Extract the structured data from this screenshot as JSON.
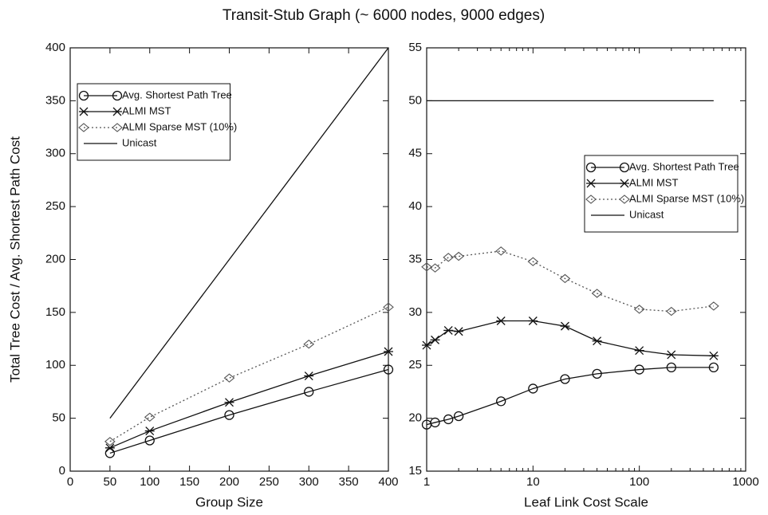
{
  "title": "Transit-Stub Graph (~ 6000 nodes, 9000 edges)",
  "chart_data": [
    {
      "type": "line",
      "xlabel": "Group Size",
      "ylabel": "Total Tree Cost / Avg. Shortest Path Cost",
      "x": [
        50,
        100,
        200,
        300,
        400
      ],
      "xlim": [
        0,
        400
      ],
      "xticks": [
        0,
        50,
        100,
        150,
        200,
        250,
        300,
        350,
        400
      ],
      "ylim": [
        0,
        400
      ],
      "yticks": [
        0,
        50,
        100,
        150,
        200,
        250,
        300,
        350,
        400
      ],
      "log_x": false,
      "legend": "upper left",
      "series": [
        {
          "name": "Avg. Shortest Path Tree",
          "color": "#111",
          "marker": "circle",
          "dash": false,
          "values": [
            17,
            29,
            53,
            75,
            96
          ]
        },
        {
          "name": "ALMI MST",
          "color": "#111",
          "marker": "star",
          "dash": false,
          "values": [
            22,
            38,
            65,
            90,
            113
          ]
        },
        {
          "name": "ALMI Sparse MST (10%)",
          "color": "#555",
          "marker": "diamond",
          "dash": true,
          "values": [
            28,
            51,
            88,
            120,
            155
          ]
        },
        {
          "name": "Unicast",
          "color": "#111",
          "marker": "none",
          "dash": false,
          "values": [
            50,
            100,
            200,
            300,
            400
          ]
        }
      ]
    },
    {
      "type": "line",
      "xlabel": "Leaf Link Cost Scale",
      "x": [
        1,
        1.2,
        1.6,
        2,
        5,
        10,
        20,
        40,
        100,
        200,
        500
      ],
      "xlim": [
        1,
        1000
      ],
      "xticks": [
        1,
        10,
        100,
        1000
      ],
      "ylim": [
        15,
        55
      ],
      "yticks": [
        15,
        20,
        25,
        30,
        35,
        40,
        45,
        50,
        55
      ],
      "log_x": true,
      "legend": "center right",
      "series": [
        {
          "name": "Avg. Shortest Path Tree",
          "color": "#111",
          "marker": "circle",
          "dash": false,
          "values": [
            19.4,
            19.6,
            19.9,
            20.2,
            21.6,
            22.8,
            23.7,
            24.2,
            24.6,
            24.8,
            24.8
          ]
        },
        {
          "name": "ALMI MST",
          "color": "#111",
          "marker": "star",
          "dash": false,
          "values": [
            26.9,
            27.4,
            28.3,
            28.2,
            29.2,
            29.2,
            28.7,
            27.3,
            26.4,
            26.0,
            25.9
          ]
        },
        {
          "name": "ALMI Sparse MST (10%)",
          "color": "#555",
          "marker": "diamond",
          "dash": true,
          "values": [
            34.3,
            34.2,
            35.2,
            35.3,
            35.8,
            34.8,
            33.2,
            31.8,
            30.3,
            30.1,
            30.6
          ]
        },
        {
          "name": "Unicast",
          "color": "#111",
          "marker": "none",
          "dash": false,
          "values": [
            50,
            50,
            50,
            50,
            50,
            50,
            50,
            50,
            50,
            50,
            50
          ]
        }
      ]
    }
  ]
}
